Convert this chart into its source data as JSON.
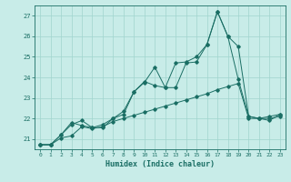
{
  "xlabel": "Humidex (Indice chaleur)",
  "background_color": "#c8ece8",
  "grid_color": "#a0d4ce",
  "line_color": "#1a6e64",
  "xlim": [
    -0.5,
    23.5
  ],
  "ylim": [
    20.5,
    27.5
  ],
  "xticks": [
    0,
    1,
    2,
    3,
    4,
    5,
    6,
    7,
    8,
    9,
    10,
    11,
    12,
    13,
    14,
    15,
    16,
    17,
    18,
    19,
    20,
    21,
    22,
    23
  ],
  "yticks": [
    21,
    22,
    23,
    24,
    25,
    26,
    27
  ],
  "line1_x": [
    0,
    1,
    2,
    3,
    4,
    5,
    6,
    7,
    8,
    9,
    10,
    11,
    12,
    13,
    14,
    15,
    16,
    17,
    18,
    19,
    20,
    21,
    22,
    23
  ],
  "line1_y": [
    20.72,
    20.72,
    21.2,
    21.8,
    21.65,
    21.55,
    21.55,
    22.0,
    22.2,
    23.3,
    23.8,
    23.6,
    23.5,
    24.7,
    24.75,
    25.0,
    25.6,
    27.2,
    26.0,
    25.5,
    22.1,
    22.0,
    22.1,
    22.2
  ],
  "line2_x": [
    0,
    1,
    2,
    3,
    4,
    5,
    6,
    7,
    8,
    9,
    10,
    11,
    12,
    13,
    14,
    15,
    16,
    17,
    18,
    19,
    20,
    21,
    22,
    23
  ],
  "line2_y": [
    20.72,
    20.72,
    21.2,
    21.7,
    21.9,
    21.55,
    21.7,
    22.0,
    22.35,
    23.3,
    23.75,
    24.5,
    23.5,
    23.5,
    24.7,
    24.75,
    25.6,
    27.2,
    26.0,
    23.9,
    22.1,
    22.0,
    21.9,
    22.2
  ],
  "line3_x": [
    0,
    1,
    2,
    3,
    4,
    5,
    6,
    7,
    8,
    9,
    10,
    11,
    12,
    13,
    14,
    15,
    16,
    17,
    18,
    19,
    20,
    21,
    22,
    23
  ],
  "line3_y": [
    20.72,
    20.72,
    21.05,
    21.15,
    21.6,
    21.5,
    21.6,
    21.85,
    22.0,
    22.15,
    22.3,
    22.45,
    22.6,
    22.75,
    22.9,
    23.05,
    23.2,
    23.4,
    23.55,
    23.7,
    22.0,
    22.0,
    22.0,
    22.1
  ]
}
